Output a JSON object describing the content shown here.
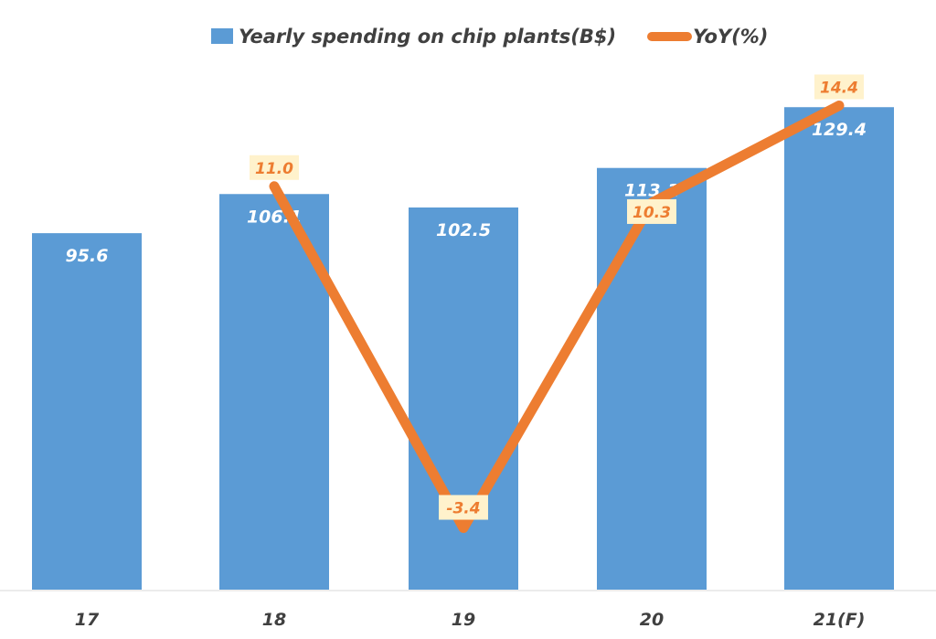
{
  "chart_data": {
    "type": "bar+line",
    "categories": [
      "17",
      "18",
      "19",
      "20",
      "21(F)"
    ],
    "series": [
      {
        "name": "Yearly spending on chip plants(B$)",
        "type": "bar",
        "axis": "primary",
        "color": "#5B9BD5",
        "values": [
          95.6,
          106.1,
          102.5,
          113.1,
          129.4
        ],
        "labels": [
          "95.6",
          "106.1",
          "102.5",
          "113.1",
          "129.4"
        ]
      },
      {
        "name": "YoY(%)",
        "type": "line",
        "axis": "secondary",
        "color": "#ED7D31",
        "values": [
          null,
          11.0,
          -3.4,
          10.3,
          14.4
        ],
        "labels": [
          "",
          "11.0",
          "-3.4",
          "10.3",
          "14.4"
        ]
      }
    ],
    "ylim": [
      0,
      140
    ],
    "y2lim": [
      -6,
      16
    ],
    "grid": false,
    "legend": "top",
    "label_bg": "#FFF2CC"
  }
}
